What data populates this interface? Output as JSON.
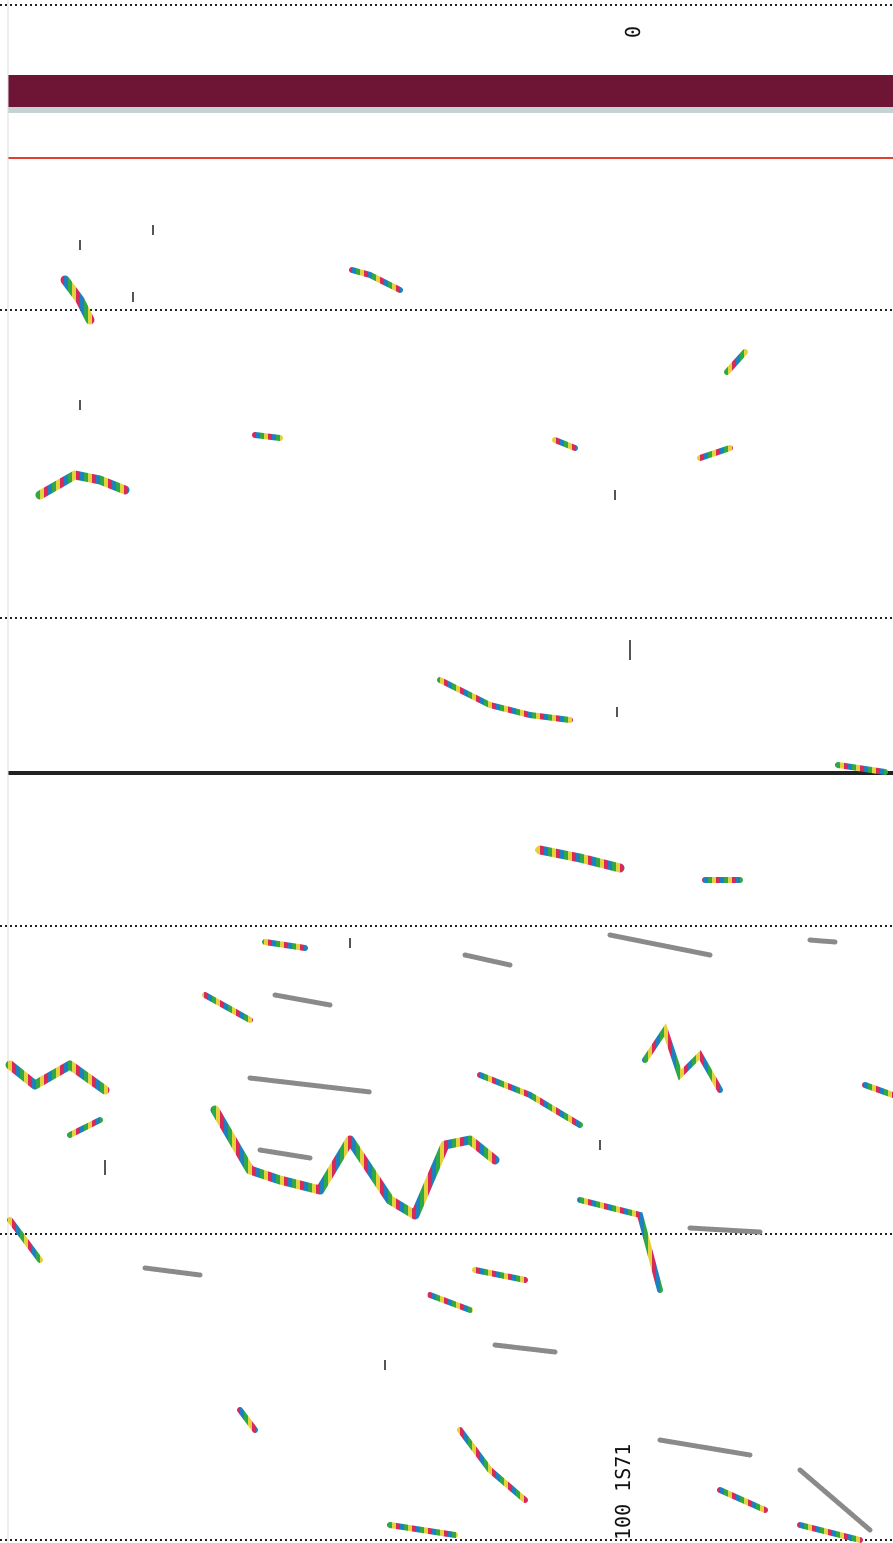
{
  "labels": {
    "top": "0",
    "side": "100 1S71"
  }
}
